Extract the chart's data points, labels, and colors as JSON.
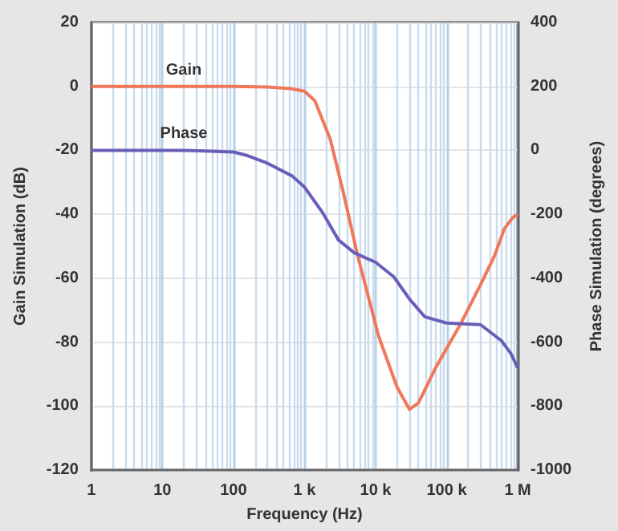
{
  "chart_data": {
    "type": "line",
    "xlabel": "Frequency (Hz)",
    "ylabel": "Gain Simulation (dB)",
    "y2label": "Phase Simulation (degrees)",
    "log": "x",
    "xlim": [
      1,
      1000000
    ],
    "xticks": [
      {
        "value": 1,
        "label": "1"
      },
      {
        "value": 10,
        "label": "10"
      },
      {
        "value": 100,
        "label": "100"
      },
      {
        "value": 1000,
        "label": "1 k"
      },
      {
        "value": 10000,
        "label": "10 k"
      },
      {
        "value": 100000,
        "label": "100 k"
      },
      {
        "value": 1000000,
        "label": "1 M"
      }
    ],
    "ylim": [
      -120,
      20
    ],
    "yticks": [
      -120,
      -100,
      -80,
      -60,
      -40,
      -20,
      0,
      20
    ],
    "y2lim": [
      -1000,
      400
    ],
    "y2ticks": [
      -1000,
      -800,
      -600,
      -400,
      -200,
      0,
      200,
      400
    ],
    "grid": true,
    "legend": false,
    "marker": "none",
    "line_style": "solid",
    "series": [
      {
        "name": "Gain",
        "color": "#f0785a",
        "x": [
          1,
          20,
          100,
          300,
          600,
          1000,
          1400,
          2300,
          3500,
          5600,
          11000,
          20000,
          30000,
          40000,
          70000,
          155000,
          300000,
          470000,
          650000,
          850000,
          1000000
        ],
        "values": [
          0,
          0,
          0,
          -0.2,
          -0.6,
          -1.5,
          -4.5,
          -16.5,
          -33,
          -53,
          -78,
          -94,
          -101,
          -99,
          -88,
          -74.5,
          -62,
          -53,
          -44.5,
          -41,
          -40
        ]
      },
      {
        "name": "Phase",
        "color": "#6a5fb8",
        "axis": "y2",
        "x": [
          1,
          20,
          100,
          150,
          300,
          670,
          1000,
          1800,
          3000,
          5000,
          10000,
          18000,
          30000,
          49000,
          100000,
          300000,
          590000,
          800000,
          1000000
        ],
        "values": [
          0,
          0,
          -5,
          -15,
          -40,
          -80,
          -115,
          -195,
          -280,
          -320,
          -350,
          -395,
          -465,
          -520,
          -540,
          -545,
          -595,
          -635,
          -680
        ]
      }
    ]
  }
}
